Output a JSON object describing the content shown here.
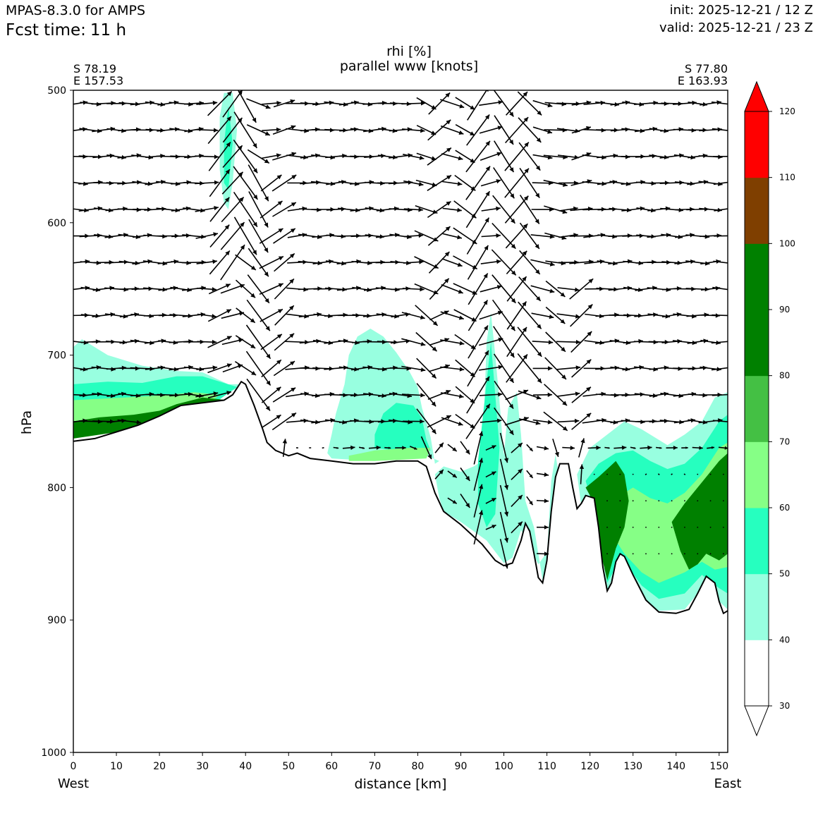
{
  "header": {
    "model": "MPAS-8.3.0 for AMPS",
    "fcst_label": "Fcst time:",
    "fcst_value": "11 h",
    "init": "init: 2025-12-21 / 12 Z",
    "valid": "valid: 2025-12-21 / 23 Z"
  },
  "chart_data": {
    "type": "contour-cross-section",
    "title": "rhi [%]",
    "subtitle": "parallel www [knots]",
    "xlabel": "distance [km]",
    "ylabel": "hPa",
    "xlim": [
      0,
      152
    ],
    "ylim": [
      1000,
      500
    ],
    "x_ticks": [
      "0",
      "10",
      "20",
      "30",
      "40",
      "50",
      "60",
      "70",
      "80",
      "90",
      "100",
      "110",
      "120",
      "130",
      "140",
      "150"
    ],
    "y_ticks": [
      "500",
      "600",
      "700",
      "800",
      "900",
      "1000"
    ],
    "start_point": {
      "lat": "S 78.19",
      "lon": "E 157.53",
      "side": "West"
    },
    "end_point": {
      "lat": "S 77.80",
      "lon": "E 163.93",
      "side": "East"
    },
    "colorbar": {
      "ticks": [
        "30",
        "40",
        "50",
        "60",
        "70",
        "80",
        "90",
        "100",
        "110",
        "120"
      ],
      "levels": [
        30,
        40,
        50,
        60,
        70,
        80,
        90,
        100,
        110,
        120
      ],
      "colors": [
        "#ffffff",
        "#98ffe0",
        "#26ffbf",
        "#86ff86",
        "#44c044",
        "#008000",
        "#008000",
        "#7f3f00",
        "#ff0000"
      ],
      "extend": "both"
    },
    "terrain_profile": [
      [
        0,
        765
      ],
      [
        5,
        763
      ],
      [
        10,
        758
      ],
      [
        15,
        753
      ],
      [
        20,
        746
      ],
      [
        25,
        738
      ],
      [
        30,
        736
      ],
      [
        35,
        734
      ],
      [
        37,
        730
      ],
      [
        39,
        720
      ],
      [
        40,
        722
      ],
      [
        42,
        738
      ],
      [
        44,
        756
      ],
      [
        45,
        766
      ],
      [
        47,
        772
      ],
      [
        50,
        776
      ],
      [
        52,
        774
      ],
      [
        55,
        778
      ],
      [
        60,
        780
      ],
      [
        65,
        782
      ],
      [
        70,
        782
      ],
      [
        75,
        780
      ],
      [
        80,
        780
      ],
      [
        82,
        784
      ],
      [
        84,
        804
      ],
      [
        86,
        818
      ],
      [
        90,
        828
      ],
      [
        95,
        843
      ],
      [
        98,
        855
      ],
      [
        100,
        859
      ],
      [
        102,
        857
      ],
      [
        104,
        840
      ],
      [
        105,
        827
      ],
      [
        106,
        833
      ],
      [
        107,
        850
      ],
      [
        108,
        868
      ],
      [
        109,
        872
      ],
      [
        110,
        855
      ],
      [
        111,
        818
      ],
      [
        112,
        792
      ],
      [
        113,
        782
      ],
      [
        115,
        782
      ],
      [
        116,
        800
      ],
      [
        117,
        816
      ],
      [
        118,
        812
      ],
      [
        119,
        806
      ],
      [
        121,
        808
      ],
      [
        122,
        830
      ],
      [
        123,
        860
      ],
      [
        124,
        878
      ],
      [
        125,
        872
      ],
      [
        126,
        856
      ],
      [
        127,
        850
      ],
      [
        128,
        852
      ],
      [
        130,
        866
      ],
      [
        133,
        885
      ],
      [
        136,
        894
      ],
      [
        140,
        895
      ],
      [
        143,
        892
      ],
      [
        145,
        880
      ],
      [
        147,
        867
      ],
      [
        149,
        872
      ],
      [
        150,
        886
      ],
      [
        151,
        895
      ],
      [
        152,
        893
      ]
    ],
    "rhi_regions": [
      {
        "level": 40,
        "polygon": [
          [
            0,
            694
          ],
          [
            2,
            688
          ],
          [
            8,
            700
          ],
          [
            16,
            708
          ],
          [
            24,
            712
          ],
          [
            30,
            713
          ],
          [
            36,
            722
          ],
          [
            40,
            722
          ],
          [
            30,
            738
          ],
          [
            0,
            742
          ]
        ]
      },
      {
        "level": 50,
        "polygon": [
          [
            0,
            722
          ],
          [
            8,
            720
          ],
          [
            16,
            721
          ],
          [
            24,
            716
          ],
          [
            30,
            716
          ],
          [
            38,
            724
          ],
          [
            32,
            738
          ],
          [
            0,
            746
          ]
        ]
      },
      {
        "level": 60,
        "polygon": [
          [
            0,
            734
          ],
          [
            12,
            732
          ],
          [
            22,
            730
          ],
          [
            28,
            728
          ],
          [
            34,
            730
          ],
          [
            30,
            740
          ],
          [
            0,
            752
          ]
        ]
      },
      {
        "level": 80,
        "polygon": [
          [
            0,
            750
          ],
          [
            6,
            747
          ],
          [
            14,
            745
          ],
          [
            20,
            742
          ],
          [
            24,
            737
          ],
          [
            30,
            732
          ],
          [
            36,
            734
          ],
          [
            37,
            740
          ],
          [
            35,
            746
          ],
          [
            0,
            763
          ]
        ]
      },
      {
        "level": 40,
        "polygon": [
          [
            34,
            520
          ],
          [
            35,
            502
          ],
          [
            37,
            502
          ],
          [
            38,
            530
          ],
          [
            37,
            570
          ],
          [
            36,
            590
          ],
          [
            35,
            585
          ],
          [
            34,
            560
          ]
        ]
      },
      {
        "level": 50,
        "polygon": [
          [
            35,
            540
          ],
          [
            36,
            512
          ],
          [
            37,
            540
          ],
          [
            36,
            575
          ],
          [
            35,
            570
          ]
        ]
      },
      {
        "level": 40,
        "polygon": [
          [
            59,
            774
          ],
          [
            60,
            760
          ],
          [
            61,
            744
          ],
          [
            63,
            722
          ],
          [
            64,
            700
          ],
          [
            66,
            686
          ],
          [
            69,
            680
          ],
          [
            72,
            686
          ],
          [
            75,
            698
          ],
          [
            78,
            712
          ],
          [
            80,
            724
          ],
          [
            81,
            740
          ],
          [
            83,
            762
          ],
          [
            84,
            782
          ],
          [
            85,
            780
          ],
          [
            82,
            776
          ],
          [
            70,
            780
          ],
          [
            60,
            778
          ]
        ]
      },
      {
        "level": 50,
        "polygon": [
          [
            70,
            760
          ],
          [
            72,
            744
          ],
          [
            75,
            736
          ],
          [
            79,
            738
          ],
          [
            81,
            748
          ],
          [
            82,
            764
          ],
          [
            83,
            772
          ],
          [
            75,
            772
          ],
          [
            70,
            770
          ]
        ]
      },
      {
        "level": 60,
        "polygon": [
          [
            64,
            776
          ],
          [
            70,
            772
          ],
          [
            78,
            770
          ],
          [
            83,
            770
          ],
          [
            82,
            778
          ],
          [
            70,
            780
          ],
          [
            64,
            780
          ]
        ]
      },
      {
        "level": 40,
        "polygon": [
          [
            84,
            790
          ],
          [
            86,
            784
          ],
          [
            90,
            788
          ],
          [
            93,
            784
          ],
          [
            95,
            780
          ],
          [
            96,
            690
          ],
          [
            97,
            668
          ],
          [
            98,
            700
          ],
          [
            99,
            735
          ],
          [
            100,
            776
          ],
          [
            101,
            740
          ],
          [
            103,
            728
          ],
          [
            104,
            760
          ],
          [
            105,
            810
          ],
          [
            107,
            830
          ],
          [
            108,
            850
          ],
          [
            109,
            870
          ],
          [
            110,
            852
          ],
          [
            111,
            795
          ],
          [
            112,
            775
          ],
          [
            113,
            795
          ],
          [
            112,
            840
          ],
          [
            108,
            858
          ],
          [
            104,
            832
          ],
          [
            102,
            853
          ],
          [
            100,
            857
          ],
          [
            96,
            840
          ],
          [
            90,
            826
          ],
          [
            86,
            818
          ],
          [
            85,
            808
          ]
        ]
      },
      {
        "level": 50,
        "polygon": [
          [
            94,
            780
          ],
          [
            96,
            720
          ],
          [
            97,
            690
          ],
          [
            98,
            730
          ],
          [
            99,
            770
          ],
          [
            98,
            820
          ],
          [
            96,
            830
          ],
          [
            94,
            812
          ]
        ]
      },
      {
        "level": 40,
        "polygon": [
          [
            117,
            790
          ],
          [
            120,
            770
          ],
          [
            124,
            760
          ],
          [
            128,
            750
          ],
          [
            132,
            756
          ],
          [
            138,
            768
          ],
          [
            142,
            760
          ],
          [
            146,
            750
          ],
          [
            149,
            732
          ],
          [
            152,
            728
          ],
          [
            152,
            892
          ],
          [
            150,
            886
          ],
          [
            148,
            872
          ],
          [
            145,
            880
          ],
          [
            142,
            892
          ],
          [
            136,
            893
          ],
          [
            132,
            884
          ],
          [
            128,
            858
          ],
          [
            125,
            870
          ],
          [
            124,
            878
          ],
          [
            122,
            830
          ],
          [
            120,
            808
          ],
          [
            118,
            814
          ]
        ]
      },
      {
        "level": 50,
        "polygon": [
          [
            119,
            795
          ],
          [
            122,
            782
          ],
          [
            126,
            774
          ],
          [
            130,
            772
          ],
          [
            134,
            780
          ],
          [
            138,
            786
          ],
          [
            142,
            782
          ],
          [
            146,
            770
          ],
          [
            150,
            750
          ],
          [
            152,
            745
          ],
          [
            152,
            880
          ],
          [
            150,
            876
          ],
          [
            146,
            866
          ],
          [
            142,
            880
          ],
          [
            136,
            884
          ],
          [
            132,
            874
          ],
          [
            128,
            856
          ],
          [
            126,
            860
          ],
          [
            124,
            872
          ],
          [
            122,
            828
          ],
          [
            120,
            806
          ]
        ]
      },
      {
        "level": 60,
        "polygon": [
          [
            126,
            808
          ],
          [
            130,
            800
          ],
          [
            134,
            808
          ],
          [
            138,
            812
          ],
          [
            142,
            804
          ],
          [
            146,
            790
          ],
          [
            150,
            770
          ],
          [
            152,
            766
          ],
          [
            152,
            860
          ],
          [
            149,
            862
          ],
          [
            146,
            856
          ],
          [
            142,
            864
          ],
          [
            136,
            872
          ],
          [
            132,
            864
          ],
          [
            128,
            850
          ],
          [
            126,
            840
          ]
        ]
      },
      {
        "level": 80,
        "polygon": [
          [
            119,
            800
          ],
          [
            122,
            792
          ],
          [
            124,
            786
          ],
          [
            126,
            780
          ],
          [
            128,
            790
          ],
          [
            129,
            810
          ],
          [
            128,
            830
          ],
          [
            126,
            846
          ],
          [
            124,
            870
          ],
          [
            122,
            842
          ],
          [
            121,
            812
          ]
        ]
      },
      {
        "level": 80,
        "polygon": [
          [
            139,
            826
          ],
          [
            142,
            812
          ],
          [
            146,
            796
          ],
          [
            150,
            780
          ],
          [
            152,
            774
          ],
          [
            152,
            850
          ],
          [
            150,
            855
          ],
          [
            147,
            850
          ],
          [
            145,
            858
          ],
          [
            143,
            862
          ],
          [
            141,
            848
          ]
        ]
      }
    ],
    "wind_x": [
      1,
      4,
      7,
      10,
      13,
      16,
      19,
      22,
      25,
      28,
      31,
      34,
      37,
      40,
      43,
      46,
      49,
      52,
      55,
      58,
      61,
      64,
      67,
      70,
      73,
      76,
      79,
      82,
      85,
      88,
      91,
      94,
      97,
      100,
      103,
      106,
      109,
      112,
      115,
      118,
      121,
      124,
      127,
      130,
      133,
      136,
      139,
      142,
      145,
      148,
      151
    ],
    "wind_p": [
      510,
      530,
      550,
      570,
      590,
      610,
      630,
      650,
      670,
      690,
      710,
      730,
      750,
      770,
      790,
      810,
      830,
      850
    ],
    "wind_note": "parallel horizontal component (positive eastward) plus scaled vertical motion"
  }
}
